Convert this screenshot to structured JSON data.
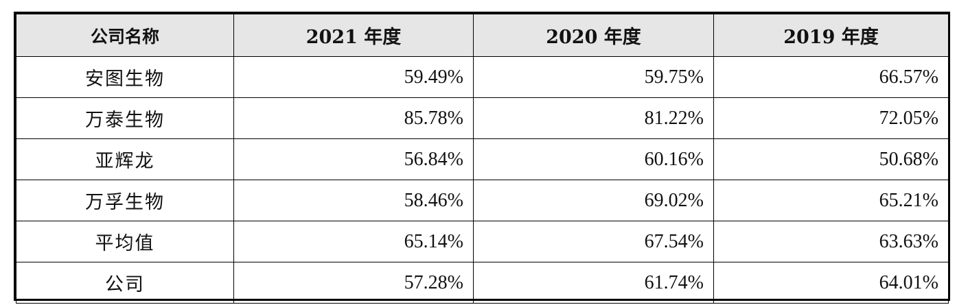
{
  "table": {
    "headers": [
      "公司名称",
      "2021 年度",
      "2020 年度",
      "2019 年度"
    ],
    "rows": [
      {
        "name": "安图生物",
        "values": [
          "59.49%",
          "59.75%",
          "66.57%"
        ]
      },
      {
        "name": "万泰生物",
        "values": [
          "85.78%",
          "81.22%",
          "72.05%"
        ]
      },
      {
        "name": "亚辉龙",
        "values": [
          "56.84%",
          "60.16%",
          "50.68%"
        ]
      },
      {
        "name": "万孚生物",
        "values": [
          "58.46%",
          "69.02%",
          "65.21%"
        ]
      },
      {
        "name": "平均值",
        "values": [
          "65.14%",
          "67.54%",
          "63.63%"
        ]
      },
      {
        "name": "公司",
        "values": [
          "57.28%",
          "61.74%",
          "64.01%"
        ]
      }
    ]
  },
  "colors": {
    "header_bg": "#e6e6e6",
    "border": "#000000",
    "text": "#111111"
  }
}
